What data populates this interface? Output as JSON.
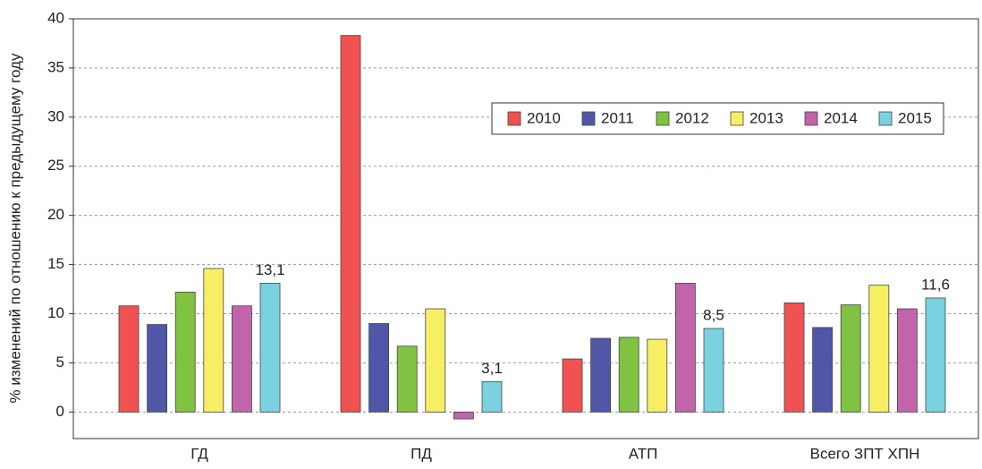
{
  "chart_data": {
    "type": "bar",
    "y_label": "% изменений по отношению к предыдущему году",
    "categories": [
      "ГД",
      "ПД",
      "АТП",
      "Всего ЗПТ ХПН"
    ],
    "series": [
      {
        "name": "2010",
        "color": "#f05252",
        "values": [
          10.8,
          38.3,
          5.4,
          11.1
        ]
      },
      {
        "name": "2011",
        "color": "#5157a8",
        "values": [
          8.9,
          9.0,
          7.5,
          8.6
        ]
      },
      {
        "name": "2012",
        "color": "#80c242",
        "values": [
          12.2,
          6.7,
          7.6,
          10.9
        ]
      },
      {
        "name": "2013",
        "color": "#f7ef63",
        "values": [
          14.6,
          10.5,
          7.4,
          12.9
        ]
      },
      {
        "name": "2014",
        "color": "#c264aa",
        "values": [
          10.8,
          -0.7,
          13.1,
          10.5
        ]
      },
      {
        "name": "2015",
        "color": "#7ad2e0",
        "values": [
          13.1,
          3.1,
          8.5,
          11.6
        ],
        "value_labels": [
          "13,1",
          "3,1",
          "8,5",
          "11,6"
        ]
      }
    ],
    "ylim": [
      -2.7,
      40
    ],
    "yticks": [
      0,
      5,
      10,
      15,
      20,
      25,
      30,
      35,
      40
    ],
    "grid": true
  }
}
